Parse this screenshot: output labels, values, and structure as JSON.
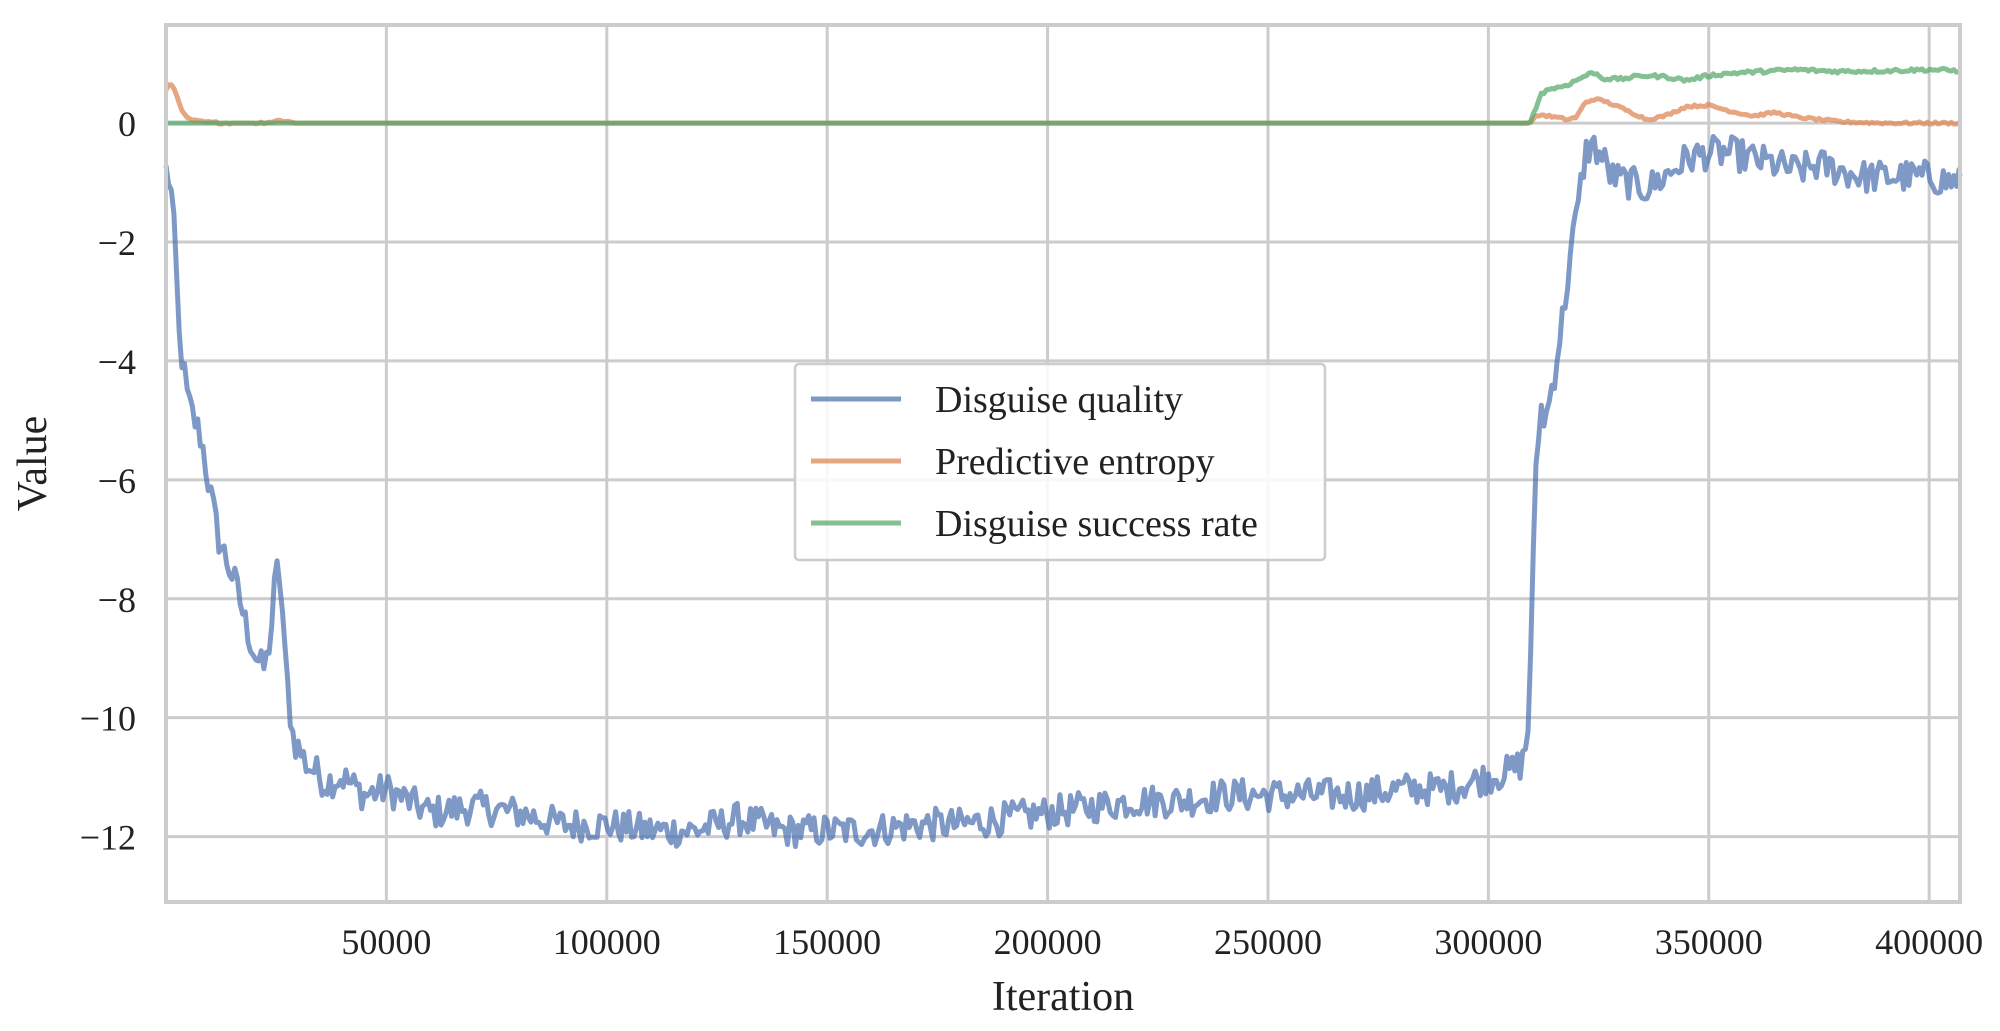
{
  "chart_data": {
    "type": "line",
    "xlabel": "Iteration",
    "ylabel": "Value",
    "xlim": [
      0,
      407000
    ],
    "ylim": [
      -13.1,
      1.65
    ],
    "xticks": [
      50000,
      100000,
      150000,
      200000,
      250000,
      300000,
      350000,
      400000
    ],
    "yticks": [
      0,
      -2,
      -4,
      -6,
      -8,
      -10,
      -12
    ],
    "grid": true,
    "legend_position": "center",
    "series": [
      {
        "name": "Disguise quality",
        "color": "#4c72b0",
        "x": [
          0,
          1000,
          2000,
          3000,
          5000,
          8000,
          10000,
          12000,
          14000,
          16000,
          18000,
          20000,
          22000,
          23000,
          24000,
          25000,
          26000,
          27000,
          28000,
          29000,
          30000,
          32000,
          34000,
          36000,
          40000,
          45000,
          50000,
          55000,
          60000,
          70000,
          80000,
          90000,
          100000,
          110000,
          120000,
          130000,
          140000,
          150000,
          160000,
          170000,
          180000,
          190000,
          200000,
          210000,
          220000,
          230000,
          240000,
          250000,
          260000,
          270000,
          280000,
          290000,
          300000,
          305000,
          307000,
          308000,
          309000,
          310000,
          311000,
          312000,
          313000,
          314000,
          315000,
          316000,
          317000,
          318000,
          319000,
          320000,
          322000,
          323000,
          324000,
          326000,
          328000,
          332000,
          336000,
          340000,
          345000,
          350000,
          355000,
          360000,
          365000,
          370000,
          375000,
          380000,
          385000,
          390000,
          395000,
          400000,
          405000,
          407000
        ],
        "y": [
          -0.8,
          -1.0,
          -2.0,
          -3.6,
          -4.7,
          -5.3,
          -6.2,
          -7.0,
          -7.4,
          -7.8,
          -8.4,
          -8.9,
          -9.2,
          -9.0,
          -8.4,
          -7.5,
          -7.7,
          -9.0,
          -9.8,
          -10.4,
          -10.5,
          -10.8,
          -10.9,
          -11.1,
          -11.0,
          -11.3,
          -11.2,
          -11.4,
          -11.6,
          -11.5,
          -11.6,
          -11.8,
          -11.8,
          -11.9,
          -11.9,
          -11.7,
          -11.9,
          -11.9,
          -11.9,
          -11.8,
          -11.8,
          -11.7,
          -11.6,
          -11.5,
          -11.4,
          -11.4,
          -11.3,
          -11.3,
          -11.3,
          -11.3,
          -11.2,
          -11.2,
          -11.0,
          -10.9,
          -10.8,
          -10.7,
          -10.2,
          -7.8,
          -5.5,
          -4.8,
          -5.0,
          -4.6,
          -4.2,
          -3.7,
          -3.2,
          -2.6,
          -2.0,
          -1.6,
          -0.5,
          -0.4,
          -0.4,
          -0.6,
          -0.9,
          -1.0,
          -1.1,
          -0.9,
          -0.6,
          -0.5,
          -0.5,
          -0.6,
          -0.7,
          -0.8,
          -0.7,
          -0.8,
          -0.9,
          -0.9,
          -0.9,
          -0.9,
          -1.0,
          -0.9
        ],
        "noise": 0.28
      },
      {
        "name": "Predictive entropy",
        "color": "#dd8452",
        "x": [
          0,
          1000,
          2000,
          3000,
          4000,
          5000,
          7000,
          10000,
          15000,
          20000,
          24000,
          26000,
          28000,
          30000,
          50000,
          100000,
          150000,
          200000,
          250000,
          300000,
          309000,
          310000,
          311000,
          312000,
          315000,
          318000,
          320000,
          322000,
          324000,
          326000,
          328000,
          330000,
          333000,
          336000,
          340000,
          345000,
          350000,
          355000,
          360000,
          365000,
          370000,
          375000,
          380000,
          390000,
          400000,
          407000
        ],
        "y": [
          0.55,
          0.68,
          0.55,
          0.35,
          0.15,
          0.07,
          0.03,
          0.01,
          0.0,
          0.0,
          0.02,
          0.05,
          0.02,
          0.0,
          0.0,
          0.0,
          0.0,
          0.0,
          0.0,
          0.0,
          0.0,
          0.05,
          0.12,
          0.14,
          0.1,
          0.06,
          0.1,
          0.35,
          0.4,
          0.38,
          0.32,
          0.26,
          0.16,
          0.06,
          0.12,
          0.28,
          0.3,
          0.2,
          0.12,
          0.18,
          0.1,
          0.06,
          0.02,
          0.0,
          0.0,
          0.0
        ],
        "noise": 0.02
      },
      {
        "name": "Disguise success rate",
        "color": "#55a868",
        "x": [
          0,
          50000,
          100000,
          150000,
          200000,
          250000,
          300000,
          309000,
          310000,
          311000,
          312000,
          314000,
          316000,
          318000,
          320000,
          322000,
          324000,
          326000,
          330000,
          335000,
          340000,
          345000,
          350000,
          355000,
          360000,
          365000,
          370000,
          375000,
          380000,
          390000,
          400000,
          407000
        ],
        "y": [
          0.0,
          0.0,
          0.0,
          0.0,
          0.0,
          0.0,
          0.0,
          0.0,
          0.1,
          0.3,
          0.5,
          0.58,
          0.6,
          0.65,
          0.72,
          0.8,
          0.85,
          0.75,
          0.74,
          0.8,
          0.78,
          0.72,
          0.8,
          0.84,
          0.86,
          0.88,
          0.9,
          0.88,
          0.87,
          0.88,
          0.9,
          0.88
        ],
        "noise": 0.03
      }
    ]
  }
}
